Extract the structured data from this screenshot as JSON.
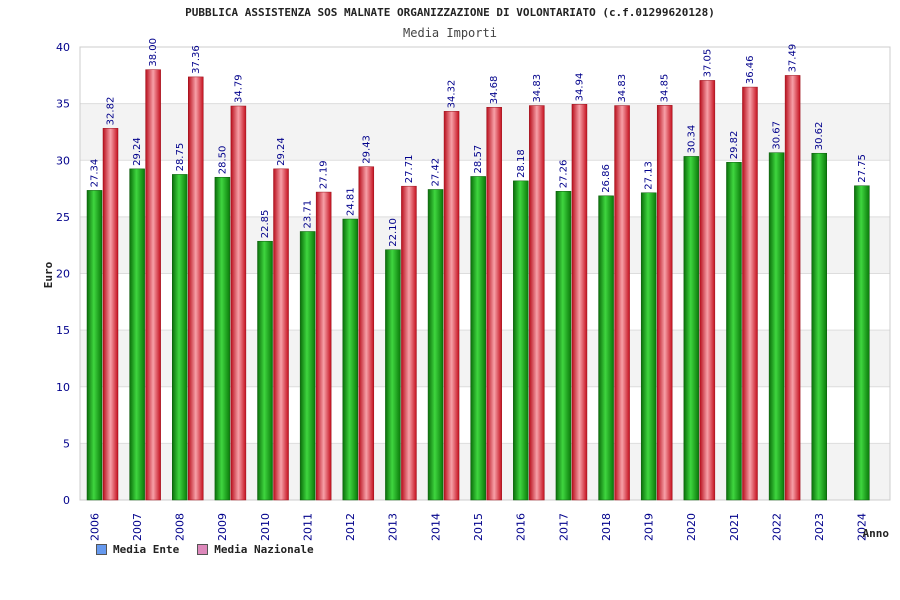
{
  "chart_data": {
    "type": "bar",
    "title": "PUBBLICA ASSISTENZA SOS MALNATE ORGANIZZAZIONE DI VOLONTARIATO (c.f.01299620128)",
    "subtitle": "Media Importi",
    "xlabel": "Anno",
    "ylabel": "Euro",
    "ylim": [
      0,
      40
    ],
    "yticks": [
      0,
      5,
      10,
      15,
      20,
      25,
      30,
      35,
      40
    ],
    "grid": true,
    "legend_position": "bottom-left",
    "categories": [
      "2006",
      "2007",
      "2008",
      "2009",
      "2010",
      "2011",
      "2012",
      "2013",
      "2014",
      "2015",
      "2016",
      "2017",
      "2018",
      "2019",
      "2020",
      "2021",
      "2022",
      "2023",
      "2024"
    ],
    "series": [
      {
        "name": "Media Ente",
        "color": "#22aa22",
        "legend_color": "#6699ee",
        "values": [
          27.34,
          29.24,
          28.75,
          28.5,
          22.85,
          23.71,
          24.81,
          22.1,
          27.42,
          28.57,
          28.18,
          27.26,
          26.86,
          27.13,
          30.34,
          29.82,
          30.67,
          30.62,
          27.75
        ],
        "labels": [
          "27.34",
          "29.24",
          "28.75",
          "28.50",
          "22.85",
          "23.71",
          "24.81",
          "22.10",
          "27.42",
          "28.57",
          "28.18",
          "27.26",
          "26.86",
          "27.13",
          "30.34",
          "29.82",
          "30.67",
          "30.62",
          "27.75"
        ]
      },
      {
        "name": "Media Nazionale",
        "color": "#ee2233",
        "legend_color": "#dd88bb",
        "values": [
          32.82,
          38.0,
          37.36,
          34.79,
          29.24,
          27.19,
          29.43,
          27.71,
          34.32,
          34.68,
          34.83,
          34.94,
          34.83,
          34.85,
          37.05,
          36.46,
          37.49,
          null,
          null
        ],
        "labels": [
          "32.82",
          "38.00",
          "37.36",
          "34.79",
          "29.24",
          "27.19",
          "29.43",
          "27.71",
          "34.32",
          "34.68",
          "34.83",
          "34.94",
          "34.83",
          "34.85",
          "37.05",
          "36.46",
          "37.49",
          null,
          null
        ]
      }
    ]
  }
}
